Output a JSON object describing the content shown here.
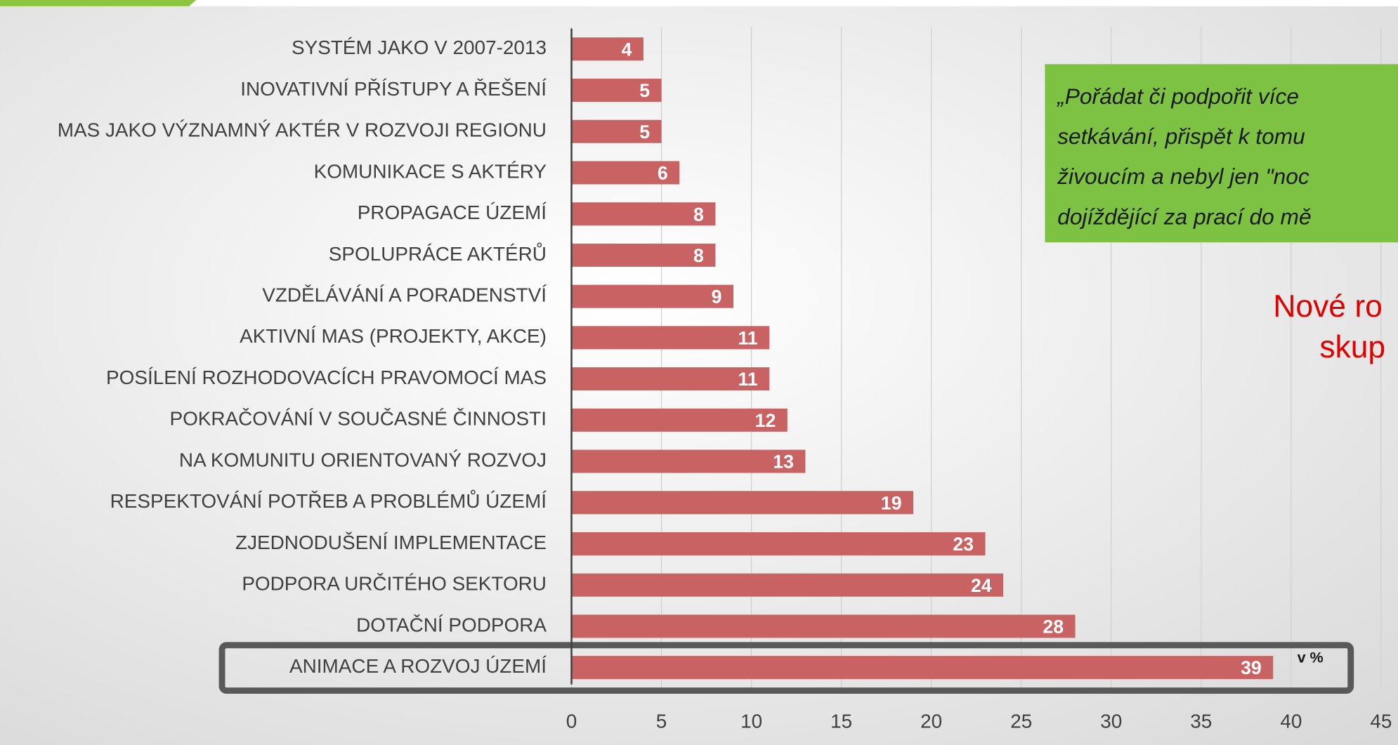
{
  "chart_data": {
    "type": "barh",
    "categories": [
      "SYSTÉM JAKO V 2007-2013",
      "INOVATIVNÍ PŘÍSTUPY A ŘEŠENÍ",
      "MAS JAKO VÝZNAMNÝ AKTÉR V ROZVOJI REGIONU",
      "KOMUNIKACE S AKTÉRY",
      "PROPAGACE ÚZEMÍ",
      "SPOLUPRÁCE AKTÉRŮ",
      "VZDĚLÁVÁNÍ A PORADENSTVÍ",
      "AKTIVNÍ MAS (PROJEKTY, AKCE)",
      "POSÍLENÍ ROZHODOVACÍCH PRAVOMOCÍ MAS",
      "POKRAČOVÁNÍ V SOUČASNÉ ČINNOSTI",
      "NA KOMUNITU ORIENTOVANÝ ROZVOJ",
      "RESPEKTOVÁNÍ POTŘEB A PROBLÉMŮ ÚZEMÍ",
      "ZJEDNODUŠENÍ IMPLEMENTACE",
      "PODPORA URČITÉHO SEKTORU",
      "DOTAČNÍ PODPORA",
      "ANIMACE A ROZVOJ ÚZEMÍ"
    ],
    "values": [
      4,
      5,
      5,
      6,
      8,
      8,
      9,
      11,
      11,
      12,
      13,
      19,
      23,
      24,
      28,
      39
    ],
    "color": "#c96262",
    "xlim": [
      0,
      45
    ],
    "xticks": [
      0,
      5,
      10,
      15,
      20,
      25,
      30,
      35,
      40,
      45
    ],
    "grid": true,
    "unit_label": "v %",
    "quote_lines": [
      "„Pořádat či podpořit více",
      "setkávání, přispět k tomu",
      "živoucím a nebyl jen \"noc",
      "dojíždějící za prací do mě"
    ],
    "side_text": [
      "Nové ro",
      "skup"
    ]
  }
}
